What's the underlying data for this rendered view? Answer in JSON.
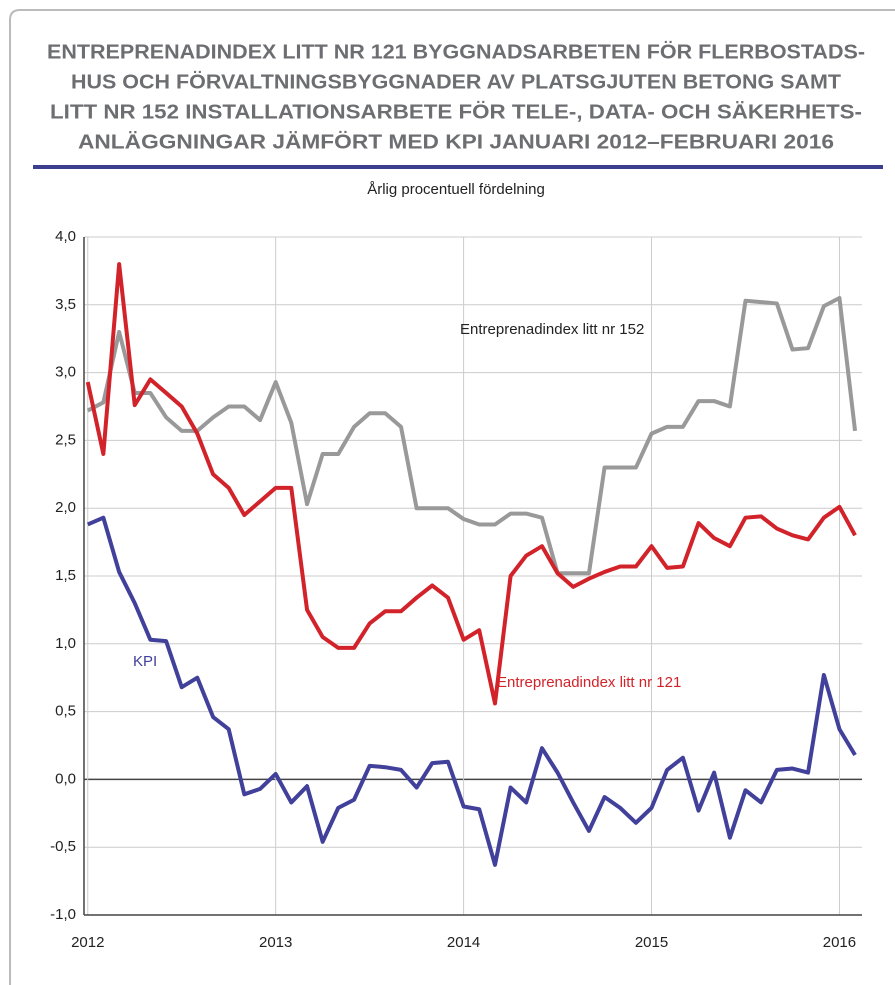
{
  "chart_data": {
    "type": "line",
    "title": [
      "ENTREPRENADINDEX LITT NR 121 BYGGNADSARBETEN FÖR FLERBOSTADS-",
      "HUS OCH FÖRVALTNINGSBYGGNADER AV PLATSGJUTEN BETONG SAMT",
      "LITT NR 152 INSTALLATIONSARBETE FÖR TELE-, DATA- OCH SÄKERHETS-",
      "ANLÄGGNINGAR JÄMFÖRT MED KPI JANUARI 2012–FEBRUARI 2016"
    ],
    "subtitle": "Årlig procentuell fördelning",
    "x": [
      2012,
      2012.083,
      2012.167,
      2012.25,
      2012.333,
      2012.417,
      2012.5,
      2012.583,
      2012.667,
      2012.75,
      2012.833,
      2012.917,
      2013,
      2013.083,
      2013.167,
      2013.25,
      2013.333,
      2013.417,
      2013.5,
      2013.583,
      2013.667,
      2013.75,
      2013.833,
      2013.917,
      2014,
      2014.083,
      2014.167,
      2014.25,
      2014.333,
      2014.417,
      2014.5,
      2014.583,
      2014.667,
      2014.75,
      2014.833,
      2014.917,
      2015,
      2015.083,
      2015.167,
      2015.25,
      2015.333,
      2015.417,
      2015.5,
      2015.583,
      2015.667,
      2015.75,
      2015.833,
      2015.917,
      2016,
      2016.083
    ],
    "series": [
      {
        "name": "Entreprenadindex litt nr 152",
        "color": "#999999",
        "values": [
          2.72,
          2.78,
          3.3,
          2.85,
          2.85,
          2.67,
          2.57,
          2.57,
          2.67,
          2.75,
          2.75,
          2.65,
          2.93,
          2.63,
          2.03,
          2.4,
          2.4,
          2.6,
          2.7,
          2.7,
          2.6,
          2.0,
          2.0,
          2.0,
          1.92,
          1.88,
          1.88,
          1.96,
          1.96,
          1.93,
          1.52,
          1.52,
          1.52,
          2.3,
          2.3,
          2.3,
          2.55,
          2.6,
          2.6,
          2.79,
          2.79,
          2.75,
          3.53,
          3.52,
          3.51,
          3.17,
          3.18,
          3.49,
          3.55,
          2.57
        ]
      },
      {
        "name": "Entreprenadindex litt nr 121",
        "color": "#d2232a",
        "values": [
          2.93,
          2.4,
          3.8,
          2.76,
          2.95,
          2.85,
          2.75,
          2.55,
          2.25,
          2.15,
          1.95,
          2.05,
          2.15,
          2.15,
          1.25,
          1.05,
          0.97,
          0.97,
          1.15,
          1.24,
          1.24,
          1.34,
          1.43,
          1.34,
          1.03,
          1.1,
          0.56,
          1.5,
          1.65,
          1.72,
          1.52,
          1.42,
          1.48,
          1.53,
          1.57,
          1.57,
          1.72,
          1.56,
          1.57,
          1.89,
          1.78,
          1.72,
          1.93,
          1.94,
          1.85,
          1.8,
          1.77,
          1.93,
          2.01,
          1.8
        ]
      },
      {
        "name": "KPI",
        "color": "#41409a",
        "values": [
          1.88,
          1.93,
          1.53,
          1.3,
          1.03,
          1.02,
          0.68,
          0.75,
          0.46,
          0.37,
          -0.11,
          -0.07,
          0.04,
          -0.17,
          -0.05,
          -0.46,
          -0.21,
          -0.15,
          0.1,
          0.09,
          0.07,
          -0.06,
          0.12,
          0.13,
          -0.2,
          -0.22,
          -0.63,
          -0.06,
          -0.17,
          0.23,
          0.05,
          -0.17,
          -0.38,
          -0.13,
          -0.21,
          -0.32,
          -0.21,
          0.07,
          0.16,
          -0.23,
          0.05,
          -0.43,
          -0.08,
          -0.17,
          0.07,
          0.08,
          0.05,
          0.77,
          0.37,
          0.18
        ]
      }
    ],
    "xlim": [
      2011.98,
      2016.12
    ],
    "xticks": [
      2012,
      2013,
      2014,
      2015,
      2016
    ],
    "ylim": [
      -1,
      4
    ],
    "yticks": [
      {
        "value": -1,
        "label": "-1,0"
      },
      {
        "value": -0.5,
        "label": "-0,5"
      },
      {
        "value": 0,
        "label": "0,0"
      },
      {
        "value": 0.5,
        "label": "0,5"
      },
      {
        "value": 1,
        "label": "1,0"
      },
      {
        "value": 1.5,
        "label": "1,5"
      },
      {
        "value": 2,
        "label": "2,0"
      },
      {
        "value": 2.5,
        "label": "2,5"
      },
      {
        "value": 3,
        "label": "3,0"
      },
      {
        "value": 3.5,
        "label": "3,5"
      },
      {
        "value": 4,
        "label": "4,0"
      }
    ],
    "grid": true
  }
}
